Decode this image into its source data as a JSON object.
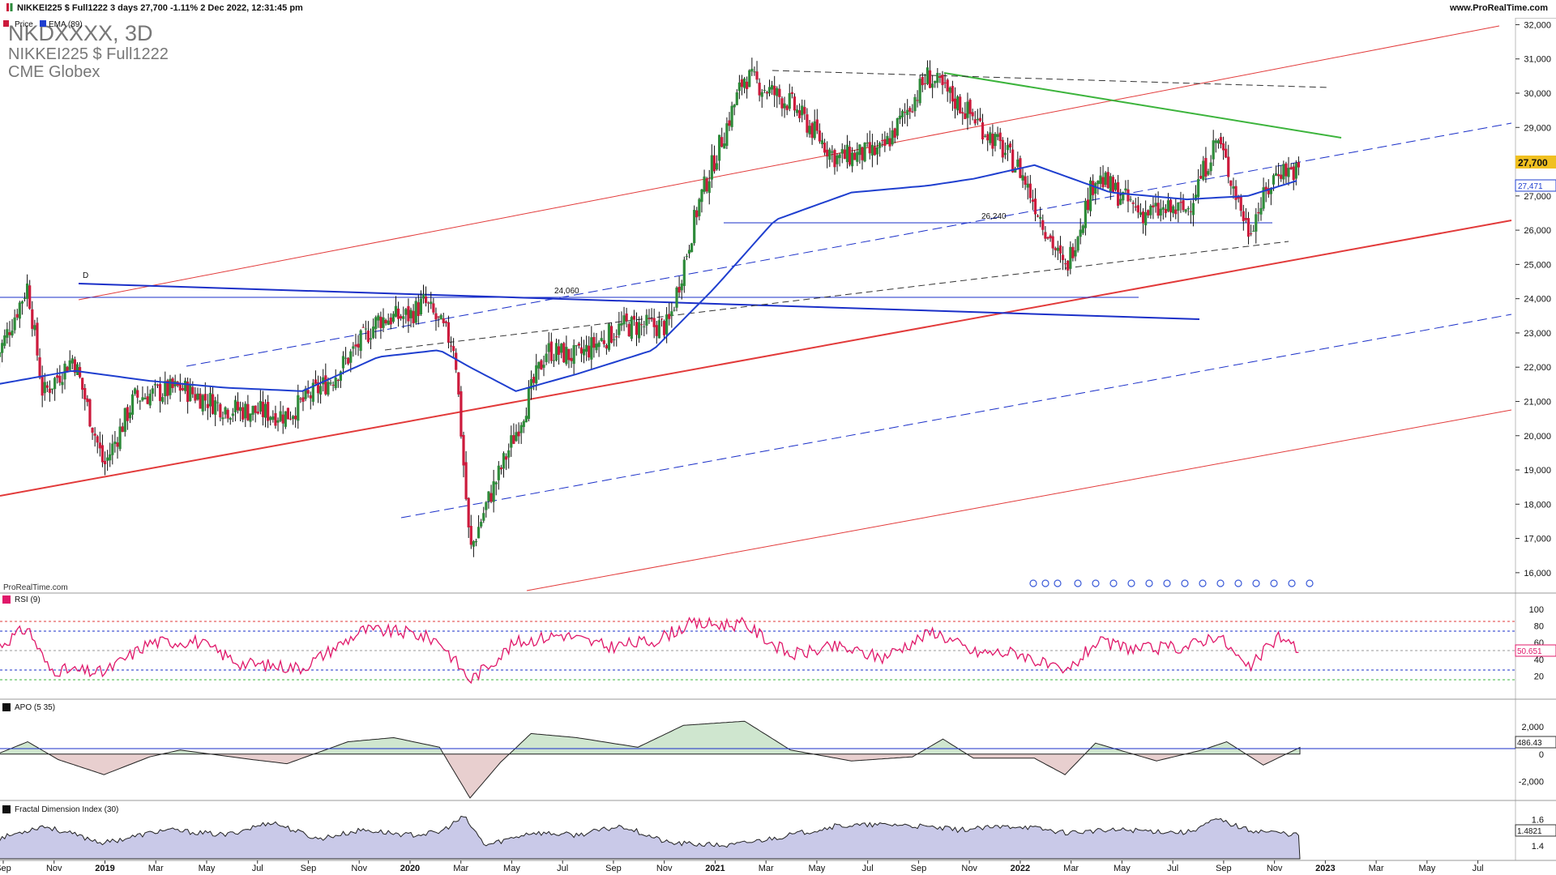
{
  "header": {
    "info": "NIKKEI225 $ Full1222 3 days 27,700 -1.11% 2 Dec 2022, 12:31:45 pm",
    "site": "www.ProRealTime.com"
  },
  "overlay": {
    "symbol": "NKDXXXX, 3D",
    "contract": "NIKKEI225 $ Full1222",
    "exchange": "CME Globex",
    "watermark": "ProRealTime.com"
  },
  "legend": {
    "price": "Price",
    "ema": "EMA (89)"
  },
  "annotations": {
    "d_marker": "D",
    "level_24060": "24,060",
    "level_26240": "26,240"
  },
  "price_axis": {
    "ticks": [
      "32,000",
      "31,000",
      "30,000",
      "29,000",
      "28,000",
      "27,000",
      "26,000",
      "25,000",
      "24,000",
      "23,000",
      "22,000",
      "21,000",
      "20,000",
      "19,000",
      "18,000",
      "17,000",
      "16,000"
    ],
    "last_price": "27,700",
    "ema_value": "27,471"
  },
  "rsi": {
    "label": "RSI (9)",
    "ticks": [
      "100",
      "80",
      "60",
      "40",
      "20"
    ],
    "value": "50.651"
  },
  "apo": {
    "label": "APO (5 35)",
    "ticks": [
      "2,000",
      "0",
      "-2,000"
    ],
    "value": "486.43"
  },
  "fdi": {
    "label": "Fractal Dimension Index (30)",
    "ticks": [
      "1.6",
      "1.4"
    ],
    "value": "1.4821"
  },
  "time_axis": [
    "Sep",
    "Nov",
    "2019",
    "Mar",
    "May",
    "Jul",
    "Sep",
    "Nov",
    "2020",
    "Mar",
    "May",
    "Jul",
    "Sep",
    "Nov",
    "2021",
    "Mar",
    "May",
    "Jul",
    "Sep",
    "Nov",
    "2022",
    "Mar",
    "May",
    "Jul",
    "Sep",
    "Nov",
    "2023",
    "Mar",
    "May",
    "Jul"
  ],
  "colors": {
    "bull": "#2e8b3a",
    "bear": "#cc1a3c",
    "ema": "#1f3fcf",
    "channel": "#e23a3a",
    "trend_blue": "#1a2fc8",
    "green_line": "#3cb43c",
    "rsi": "#e0186a",
    "apo_pos": "#cfe6cf",
    "apo_neg": "#e8cfcf",
    "fdi_fill": "#c9c9e8"
  },
  "chart_data": [
    {
      "type": "candlestick",
      "series": [
        {
          "name": "Price",
          "values": [
            [
              2018.65,
              22300
            ],
            [
              2018.75,
              24400
            ],
            [
              2018.8,
              21200
            ],
            [
              2018.9,
              22300
            ],
            [
              2019.0,
              19100
            ],
            [
              2019.1,
              21100
            ],
            [
              2019.25,
              21400
            ],
            [
              2019.4,
              20800
            ],
            [
              2019.6,
              20600
            ],
            [
              2019.75,
              21700
            ],
            [
              2019.9,
              23400
            ],
            [
              2020.0,
              23500
            ],
            [
              2020.05,
              23900
            ],
            [
              2020.15,
              22600
            ],
            [
              2020.2,
              16600
            ],
            [
              2020.25,
              17900
            ],
            [
              2020.35,
              20100
            ],
            [
              2020.45,
              22500
            ],
            [
              2020.55,
              22300
            ],
            [
              2020.7,
              23200
            ],
            [
              2020.85,
              23200
            ],
            [
              2020.95,
              26800
            ],
            [
              2021.1,
              30500
            ],
            [
              2021.25,
              29700
            ],
            [
              2021.4,
              28100
            ],
            [
              2021.55,
              28300
            ],
            [
              2021.7,
              30500
            ],
            [
              2021.85,
              29300
            ],
            [
              2022.0,
              27800
            ],
            [
              2022.15,
              24800
            ],
            [
              2022.25,
              27600
            ],
            [
              2022.4,
              26500
            ],
            [
              2022.55,
              26600
            ],
            [
              2022.65,
              28700
            ],
            [
              2022.75,
              26000
            ],
            [
              2022.85,
              27800
            ],
            [
              2022.92,
              27700
            ]
          ]
        },
        {
          "name": "EMA (89)",
          "values": [
            [
              2018.65,
              21500
            ],
            [
              2018.9,
              21900
            ],
            [
              2019.15,
              21600
            ],
            [
              2019.4,
              21400
            ],
            [
              2019.65,
              21300
            ],
            [
              2019.9,
              22300
            ],
            [
              2020.1,
              22500
            ],
            [
              2020.2,
              22000
            ],
            [
              2020.35,
              21300
            ],
            [
              2020.55,
              21800
            ],
            [
              2020.8,
              22500
            ],
            [
              2021.0,
              24300
            ],
            [
              2021.2,
              26300
            ],
            [
              2021.45,
              27100
            ],
            [
              2021.7,
              27300
            ],
            [
              2021.85,
              27500
            ],
            [
              2022.05,
              27900
            ],
            [
              2022.3,
              27100
            ],
            [
              2022.55,
              26900
            ],
            [
              2022.75,
              27000
            ],
            [
              2022.92,
              27471
            ]
          ]
        }
      ],
      "ylim": [
        15500,
        32200
      ]
    },
    {
      "type": "line",
      "series": [
        {
          "name": "RSI (9)",
          "values": [
            [
              2018.65,
              55
            ],
            [
              2018.75,
              78
            ],
            [
              2018.82,
              28
            ],
            [
              2019.0,
              24
            ],
            [
              2019.15,
              60
            ],
            [
              2019.3,
              62
            ],
            [
              2019.45,
              35
            ],
            [
              2019.65,
              30
            ],
            [
              2019.85,
              75
            ],
            [
              2020.0,
              72
            ],
            [
              2020.1,
              62
            ],
            [
              2020.2,
              15
            ],
            [
              2020.35,
              60
            ],
            [
              2020.5,
              70
            ],
            [
              2020.65,
              55
            ],
            [
              2020.8,
              62
            ],
            [
              2020.92,
              82
            ],
            [
              2021.1,
              82
            ],
            [
              2021.25,
              45
            ],
            [
              2021.4,
              55
            ],
            [
              2021.55,
              42
            ],
            [
              2021.72,
              74
            ],
            [
              2021.85,
              48
            ],
            [
              2022.0,
              48
            ],
            [
              2022.15,
              22
            ],
            [
              2022.25,
              60
            ],
            [
              2022.4,
              52
            ],
            [
              2022.55,
              55
            ],
            [
              2022.65,
              70
            ],
            [
              2022.75,
              28
            ],
            [
              2022.85,
              68
            ],
            [
              2022.92,
              50.651
            ]
          ]
        }
      ],
      "ylim": [
        0,
        100
      ]
    },
    {
      "type": "area",
      "series": [
        {
          "name": "APO (5 35)",
          "values": [
            [
              2018.65,
              0
            ],
            [
              2018.75,
              900
            ],
            [
              2018.85,
              -400
            ],
            [
              2019.0,
              -1500
            ],
            [
              2019.15,
              -200
            ],
            [
              2019.25,
              300
            ],
            [
              2019.45,
              -300
            ],
            [
              2019.6,
              -700
            ],
            [
              2019.8,
              900
            ],
            [
              2019.95,
              1200
            ],
            [
              2020.1,
              500
            ],
            [
              2020.2,
              -3200
            ],
            [
              2020.3,
              -600
            ],
            [
              2020.4,
              1500
            ],
            [
              2020.55,
              1200
            ],
            [
              2020.75,
              500
            ],
            [
              2020.9,
              2100
            ],
            [
              2021.1,
              2400
            ],
            [
              2021.25,
              300
            ],
            [
              2021.45,
              -500
            ],
            [
              2021.65,
              -200
            ],
            [
              2021.75,
              1100
            ],
            [
              2021.85,
              -300
            ],
            [
              2022.05,
              -300
            ],
            [
              2022.15,
              -1500
            ],
            [
              2022.25,
              800
            ],
            [
              2022.45,
              -500
            ],
            [
              2022.6,
              300
            ],
            [
              2022.68,
              900
            ],
            [
              2022.8,
              -800
            ],
            [
              2022.92,
              486.43
            ]
          ]
        }
      ],
      "ylim": [
        -3500,
        3000
      ]
    },
    {
      "type": "area",
      "series": [
        {
          "name": "Fractal Dimension Index (30)",
          "values": [
            [
              2018.65,
              1.45
            ],
            [
              2018.8,
              1.55
            ],
            [
              2019.0,
              1.42
            ],
            [
              2019.2,
              1.52
            ],
            [
              2019.4,
              1.48
            ],
            [
              2019.55,
              1.58
            ],
            [
              2019.7,
              1.45
            ],
            [
              2019.85,
              1.52
            ],
            [
              2020.0,
              1.48
            ],
            [
              2020.1,
              1.5
            ],
            [
              2020.18,
              1.62
            ],
            [
              2020.25,
              1.4
            ],
            [
              2020.4,
              1.5
            ],
            [
              2020.55,
              1.48
            ],
            [
              2020.7,
              1.55
            ],
            [
              2020.85,
              1.42
            ],
            [
              2021.05,
              1.4
            ],
            [
              2021.25,
              1.48
            ],
            [
              2021.4,
              1.55
            ],
            [
              2021.6,
              1.56
            ],
            [
              2021.8,
              1.52
            ],
            [
              2022.0,
              1.55
            ],
            [
              2022.15,
              1.5
            ],
            [
              2022.35,
              1.52
            ],
            [
              2022.55,
              1.5
            ],
            [
              2022.65,
              1.6
            ],
            [
              2022.75,
              1.52
            ],
            [
              2022.92,
              1.4821
            ]
          ]
        }
      ],
      "ylim": [
        1.3,
        1.7
      ]
    }
  ]
}
